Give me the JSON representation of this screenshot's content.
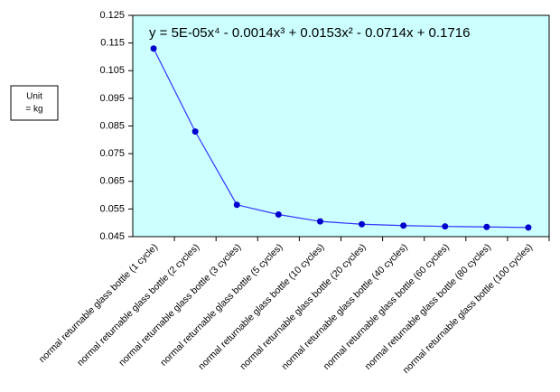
{
  "chart_data": {
    "type": "line",
    "unit_note": [
      "Unit",
      "= kg"
    ],
    "trendline_equation": "y = 5E-05x⁴ - 0.0014x³ + 0.0153x² - 0.0714x + 0.1716",
    "categories": [
      "normal returnable glass bottle (1 cycle)",
      "normal returnable glass bottle (2 cycles)",
      "normal returnable glass bottle (3 cycles)",
      "normal returnable glass bottle (5 cycles)",
      "normal returnable glass bottle (10 cycles)",
      "normal returnable glass bottle (20 cycles)",
      "normal returnable glass bottle (40 cycles)",
      "normal returnable glass bottle (60 cycles)",
      "normal returnable glass bottle (80 cycles)",
      "normal returnable glass bottle (100 cycles)"
    ],
    "values": [
      0.113,
      0.083,
      0.0565,
      0.053,
      0.0505,
      0.0495,
      0.049,
      0.0487,
      0.0485,
      0.0483
    ],
    "color": "#3333ff",
    "marker_color": "#0000cc",
    "plot_background": "#ccffff",
    "ylim": [
      0.045,
      0.125
    ],
    "yticks": [
      0.045,
      0.055,
      0.065,
      0.075,
      0.085,
      0.095,
      0.105,
      0.115,
      0.125
    ]
  }
}
